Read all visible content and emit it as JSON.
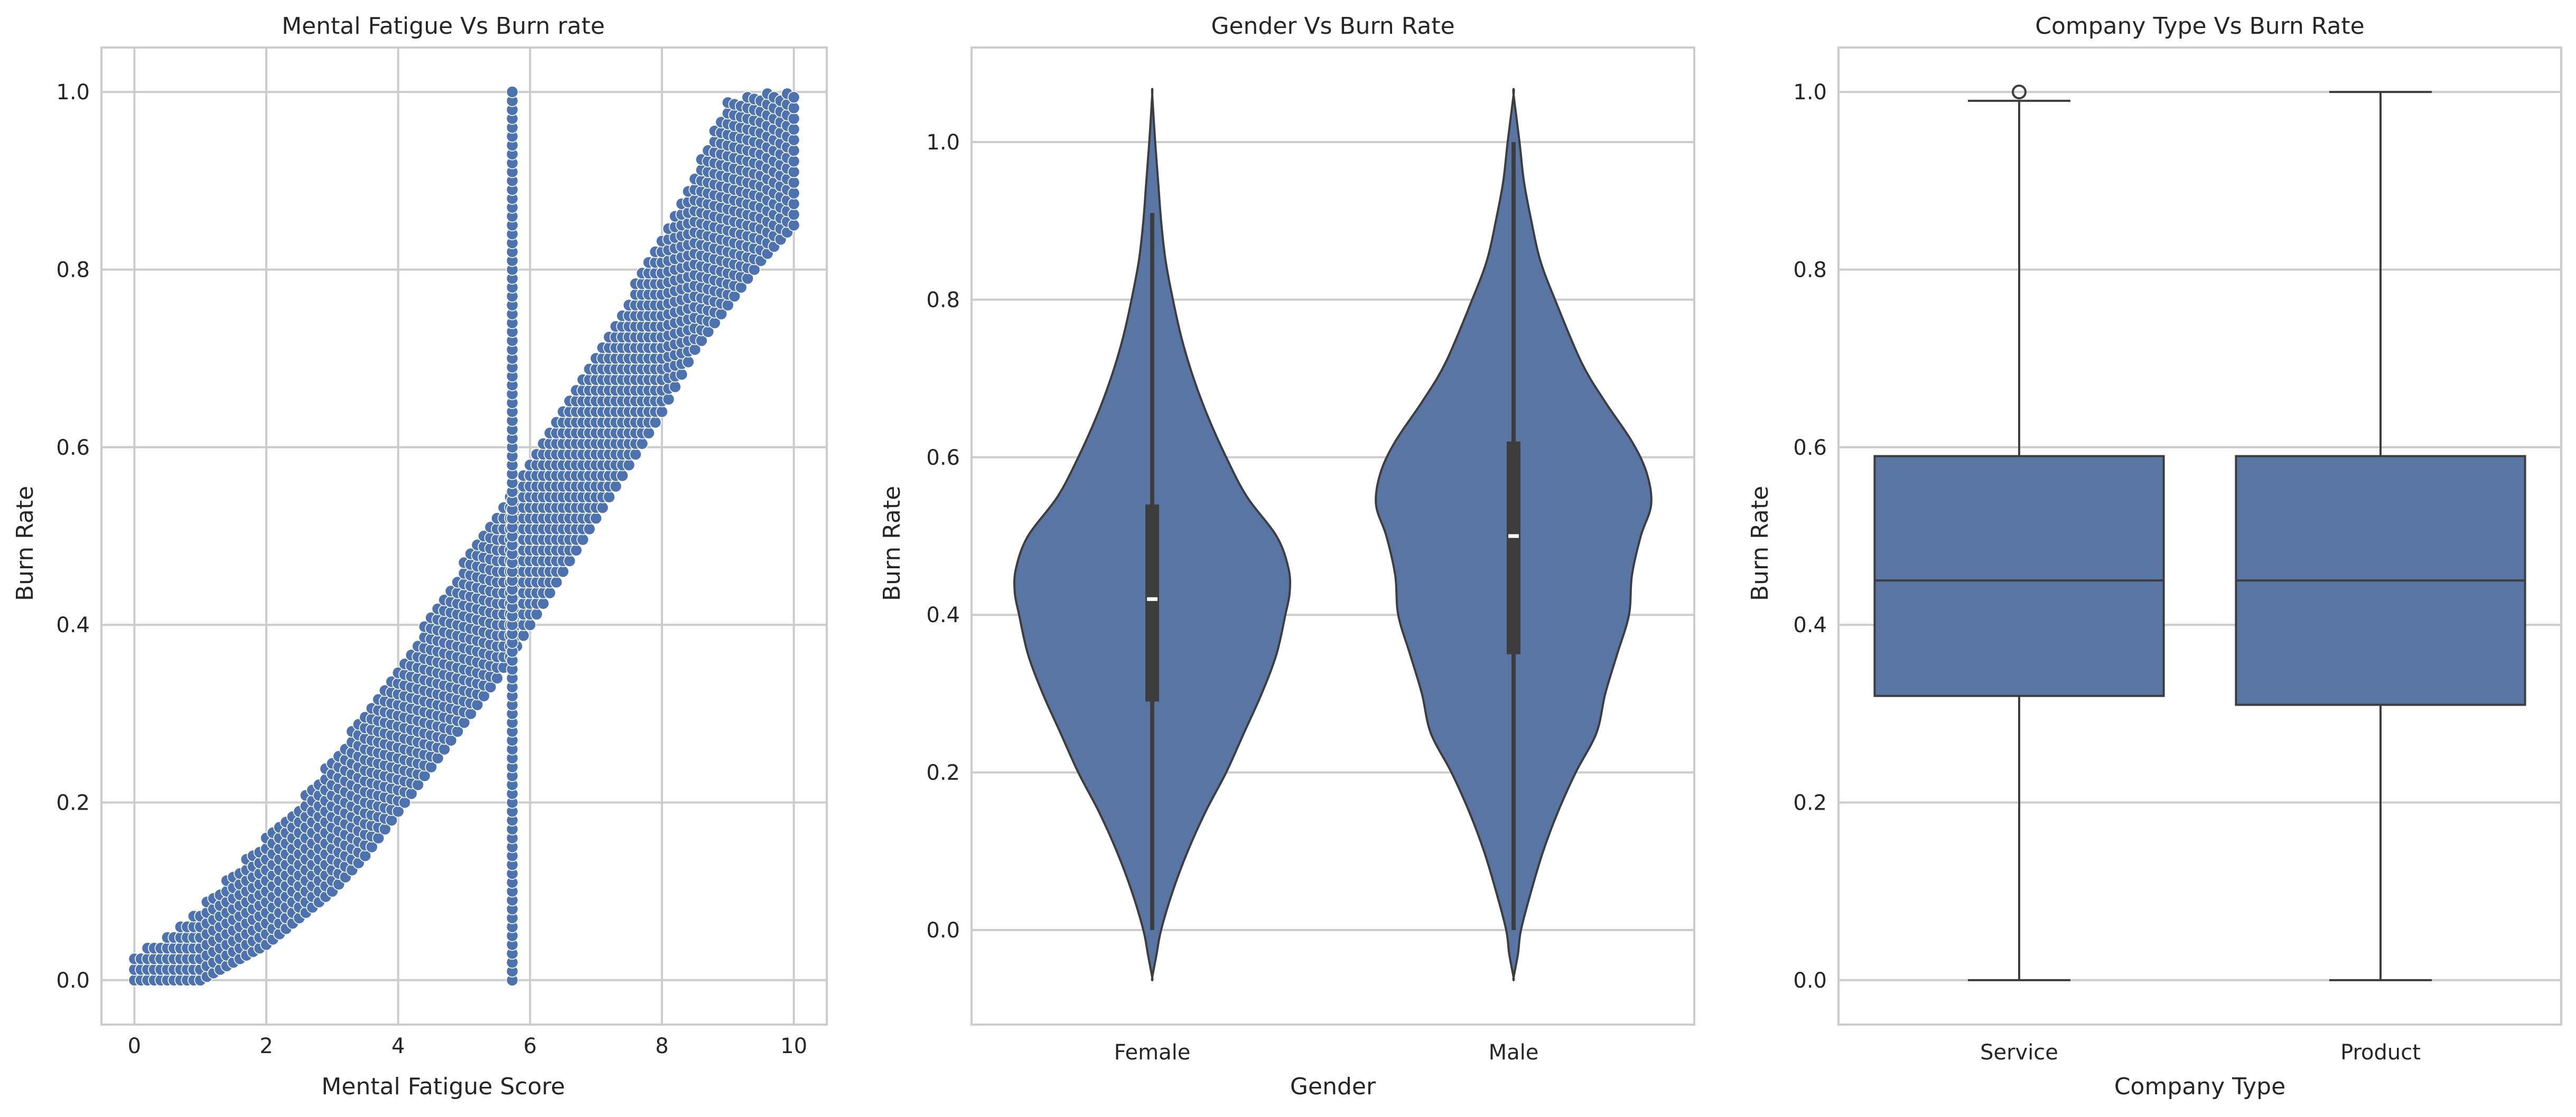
{
  "chart_data": [
    {
      "type": "scatter",
      "title": "Mental Fatigue Vs Burn rate",
      "xlabel": "Mental Fatigue Score",
      "ylabel": "Burn Rate",
      "xlim": [
        -0.5,
        10.5
      ],
      "ylim": [
        -0.05,
        1.05
      ],
      "xticks": [
        0,
        2,
        4,
        6,
        8,
        10
      ],
      "yticks": [
        0.0,
        0.2,
        0.4,
        0.6,
        0.8,
        1.0
      ],
      "grid": true,
      "color": "#4c72b0",
      "band": {
        "description_x": [
          0,
          0.5,
          1,
          1.5,
          2,
          2.5,
          3,
          3.5,
          4,
          4.5,
          5,
          5.5,
          6,
          6.5,
          7,
          7.5,
          8,
          8.5,
          9,
          9.5,
          10
        ],
        "lower": [
          0.0,
          0.0,
          0.0,
          0.02,
          0.04,
          0.07,
          0.1,
          0.14,
          0.19,
          0.24,
          0.29,
          0.34,
          0.4,
          0.46,
          0.52,
          0.58,
          0.64,
          0.71,
          0.76,
          0.81,
          0.85
        ],
        "upper": [
          0.03,
          0.05,
          0.08,
          0.12,
          0.16,
          0.2,
          0.25,
          0.3,
          0.35,
          0.41,
          0.47,
          0.53,
          0.59,
          0.65,
          0.71,
          0.77,
          0.84,
          0.91,
          0.99,
          1.0,
          1.0
        ]
      },
      "vertical_column": {
        "x": 5.73,
        "y_min": 0.0,
        "y_max": 1.0
      }
    },
    {
      "type": "violin",
      "title": "Gender Vs Burn Rate",
      "xlabel": "Gender",
      "ylabel": "Burn Rate",
      "categories": [
        "Female",
        "Male"
      ],
      "ylim": [
        -0.12,
        1.12
      ],
      "yticks": [
        0.0,
        0.2,
        0.4,
        0.6,
        0.8,
        1.0
      ],
      "grid": true,
      "color": "#5875a4",
      "series": [
        {
          "name": "Female",
          "y_range": [
            -0.06,
            1.06
          ],
          "whisker": [
            0.0,
            0.91
          ],
          "q1": 0.29,
          "median": 0.42,
          "q3": 0.54,
          "profile_y": [
            -0.06,
            -0.03,
            0.0,
            0.05,
            0.1,
            0.15,
            0.2,
            0.25,
            0.3,
            0.35,
            0.4,
            0.43,
            0.46,
            0.5,
            0.55,
            0.6,
            0.65,
            0.7,
            0.75,
            0.8,
            0.85,
            0.9,
            0.95,
            1.0,
            1.06
          ],
          "profile_w": [
            0.0,
            0.03,
            0.06,
            0.14,
            0.24,
            0.36,
            0.5,
            0.62,
            0.74,
            0.84,
            0.9,
            0.93,
            0.92,
            0.84,
            0.64,
            0.5,
            0.38,
            0.28,
            0.2,
            0.14,
            0.09,
            0.06,
            0.04,
            0.02,
            0.0
          ]
        },
        {
          "name": "Male",
          "y_range": [
            -0.06,
            1.06
          ],
          "whisker": [
            0.0,
            1.0
          ],
          "q1": 0.35,
          "median": 0.5,
          "q3": 0.62,
          "profile_y": [
            -0.06,
            -0.03,
            0.0,
            0.05,
            0.1,
            0.15,
            0.2,
            0.25,
            0.3,
            0.35,
            0.4,
            0.45,
            0.5,
            0.54,
            0.58,
            0.62,
            0.67,
            0.72,
            0.8,
            0.85,
            0.9,
            0.95,
            1.0,
            1.06
          ],
          "profile_w": [
            0.0,
            0.03,
            0.05,
            0.12,
            0.2,
            0.3,
            0.42,
            0.56,
            0.62,
            0.7,
            0.78,
            0.8,
            0.86,
            0.93,
            0.9,
            0.8,
            0.62,
            0.46,
            0.28,
            0.18,
            0.12,
            0.07,
            0.04,
            0.0
          ]
        }
      ]
    },
    {
      "type": "box",
      "title": "Company Type Vs Burn Rate",
      "xlabel": "Company Type",
      "ylabel": "Burn Rate",
      "categories": [
        "Service",
        "Product"
      ],
      "ylim": [
        -0.05,
        1.05
      ],
      "yticks": [
        0.0,
        0.2,
        0.4,
        0.6,
        0.8,
        1.0
      ],
      "grid": true,
      "color": "#5875a4",
      "series": [
        {
          "name": "Service",
          "whisker_low": 0.0,
          "q1": 0.32,
          "median": 0.45,
          "q3": 0.59,
          "whisker_high": 0.99,
          "outliers": [
            1.0
          ]
        },
        {
          "name": "Product",
          "whisker_low": 0.0,
          "q1": 0.31,
          "median": 0.45,
          "q3": 0.59,
          "whisker_high": 1.0,
          "outliers": []
        }
      ]
    }
  ]
}
